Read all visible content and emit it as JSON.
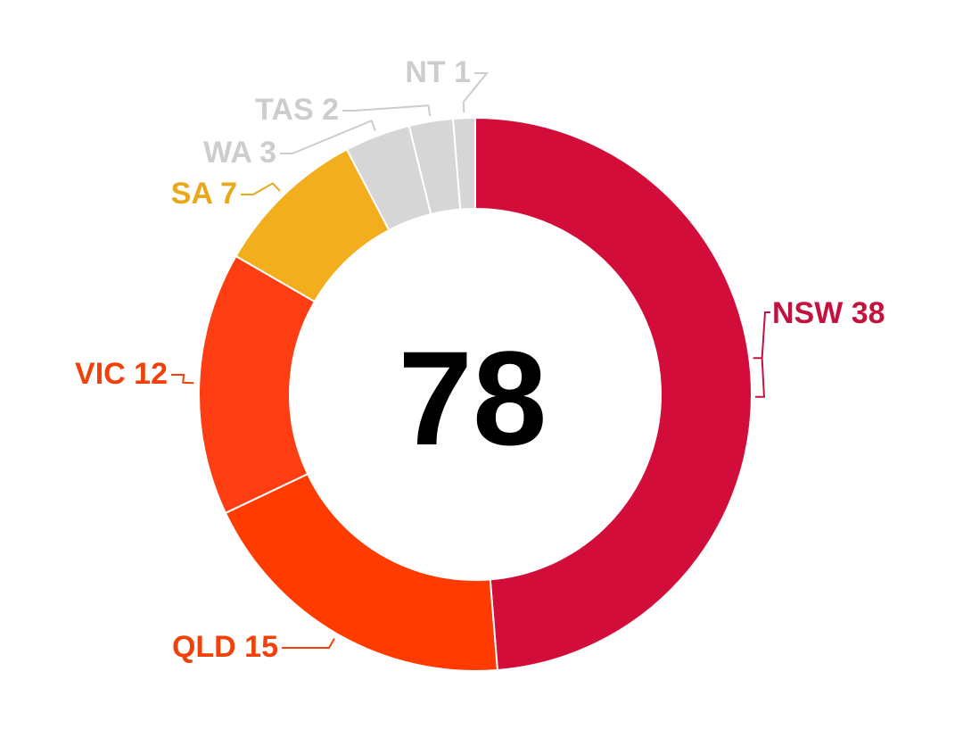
{
  "chart_data": {
    "type": "pie",
    "variant": "donut",
    "center_total": "78",
    "categories": [
      "NSW",
      "QLD",
      "VIC",
      "SA",
      "WA",
      "TAS",
      "NT"
    ],
    "values": [
      38,
      15,
      12,
      7,
      3,
      2,
      1
    ],
    "labels": [
      "NSW 38",
      "QLD 15",
      "VIC 12",
      "SA 7",
      "WA 3",
      "TAS 2",
      "NT 1"
    ],
    "colors": [
      "#d20d3a",
      "#ff3b00",
      "#ff3d12",
      "#f2ae1c",
      "#d6d6d6",
      "#d6d6d6",
      "#d6d6d6"
    ],
    "label_colors": [
      "#c4123f",
      "#f0410a",
      "#f0410a",
      "#e8a81a",
      "#cdcdcd",
      "#cdcdcd",
      "#cdcdcd"
    ],
    "title": "",
    "legend": "none"
  }
}
